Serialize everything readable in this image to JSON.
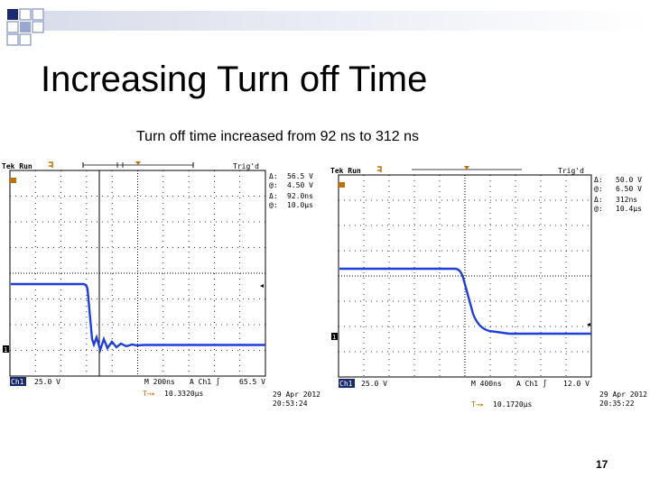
{
  "slide": {
    "title": "Increasing Turn off Time",
    "subtitle": "Turn off time increased from 92 ns to 312 ns",
    "page_number": "17"
  },
  "scope_left": {
    "status": "Tek Run",
    "trig": "Trig'd",
    "meas_dv_label": "Δ:",
    "meas_dv": "56.5 V",
    "meas_v_at_label": "@:",
    "meas_v_at": "4.50 V",
    "meas_dt_label": "Δ:",
    "meas_dt": "92.0ns",
    "meas_t_at_label": "@:",
    "meas_t_at": "10.0μs",
    "ch1_tag": "Ch1",
    "ch1_scale": "25.0 V",
    "time_scale": "M 200ns",
    "trigger_source": "A  Ch1  ∫",
    "trigger_level": "65.5 V",
    "position": "10.3320μs",
    "date": "29 Apr 2012",
    "time": "20:53:24",
    "color_trace": "#1f3fd8"
  },
  "scope_right": {
    "status": "Tek Run",
    "trig": "Trig'd",
    "meas_dv_label": "Δ:",
    "meas_dv": "50.0 V",
    "meas_v_at_label": "@:",
    "meas_v_at": "6.50 V",
    "meas_dt_label": "Δ:",
    "meas_dt": "312ns",
    "meas_t_at_label": "@:",
    "meas_t_at": "10.4μs",
    "ch1_tag": "Ch1",
    "ch1_scale": "25.0 V",
    "time_scale": "M 400ns",
    "trigger_source": "A  Ch1  ∫",
    "trigger_level": "12.0 V",
    "position": "10.1720μs",
    "date": "29 Apr 2012",
    "time": "20:35:22",
    "color_trace": "#1f3fd8"
  },
  "colors": {
    "square_dark": "#1a2a6c",
    "square_light": "#9aa7cf",
    "header_stripe": "#c9cfe0"
  }
}
